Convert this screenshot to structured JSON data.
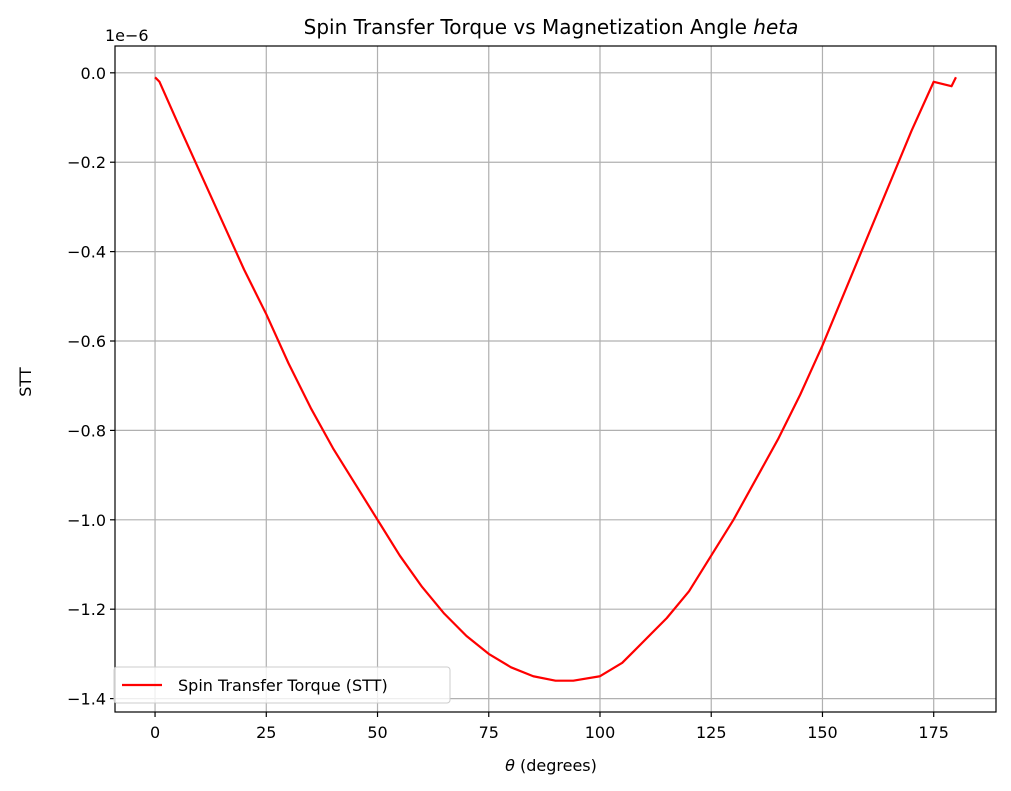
{
  "chart_data": {
    "type": "line",
    "title": "Spin Transfer Torque vs Magnetization Angle ",
    "title_italic": "heta",
    "xlabel_symbol": "θ",
    "xlabel_rest": " (degrees)",
    "ylabel": "STT",
    "y_offset_label": "1e−6",
    "xlim": [
      -9,
      189
    ],
    "ylim": [
      -1.43,
      0.06
    ],
    "x_ticks": [
      0,
      25,
      50,
      75,
      100,
      125,
      150,
      175
    ],
    "x_tick_labels": [
      "0",
      "25",
      "50",
      "75",
      "100",
      "125",
      "150",
      "175"
    ],
    "y_ticks": [
      0.0,
      -0.2,
      -0.4,
      -0.6,
      -0.8,
      -1.0,
      -1.2,
      -1.4
    ],
    "y_tick_labels": [
      "0.0",
      "−0.2",
      "−0.4",
      "−0.6",
      "−0.8",
      "−1.0",
      "−1.2",
      "−1.4"
    ],
    "grid": true,
    "legend_position": "lower-left",
    "series": [
      {
        "name": "Spin Transfer Torque (STT)",
        "color": "#ff0000",
        "x": [
          0,
          1,
          5,
          10,
          15,
          20,
          25,
          30,
          35,
          40,
          45,
          50,
          55,
          60,
          65,
          70,
          75,
          80,
          85,
          90,
          94,
          100,
          105,
          110,
          115,
          120,
          125,
          130,
          135,
          140,
          145,
          150,
          155,
          160,
          165,
          170,
          175,
          179,
          180
        ],
        "y": [
          -0.01,
          -0.02,
          -0.11,
          -0.22,
          -0.33,
          -0.44,
          -0.54,
          -0.65,
          -0.75,
          -0.84,
          -0.92,
          -1.0,
          -1.08,
          -1.15,
          -1.21,
          -1.26,
          -1.3,
          -1.33,
          -1.35,
          -1.36,
          -1.36,
          -1.35,
          -1.32,
          -1.27,
          -1.22,
          -1.16,
          -1.08,
          -1.0,
          -0.91,
          -0.82,
          -0.72,
          -0.61,
          -0.49,
          -0.37,
          -0.25,
          -0.13,
          -0.02,
          -0.03,
          -0.01
        ]
      }
    ]
  }
}
